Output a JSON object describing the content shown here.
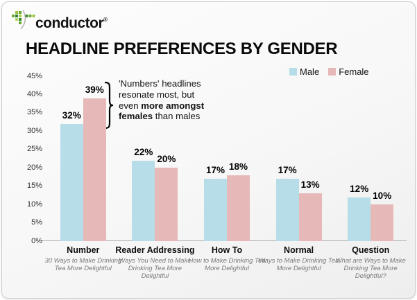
{
  "logo": {
    "text": "conductor",
    "registered": "®"
  },
  "title": "HEADLINE PREFERENCES BY GENDER",
  "legend": [
    {
      "label": "Male",
      "color": "#b7dee8"
    },
    {
      "label": "Female",
      "color": "#e6b9b8"
    }
  ],
  "annotation": {
    "lines": [
      [
        {
          "text": "'Numbers' headlines",
          "bold": false
        }
      ],
      [
        {
          "text": "resonate most, but",
          "bold": false
        }
      ],
      [
        {
          "text": "even ",
          "bold": false
        },
        {
          "text": "more amongst",
          "bold": true
        }
      ],
      [
        {
          "text": "females",
          "bold": true
        },
        {
          "text": " than males",
          "bold": false
        }
      ]
    ]
  },
  "chart_data": {
    "type": "bar",
    "categories": [
      "Number",
      "Reader Addressing",
      "How To",
      "Normal",
      "Question"
    ],
    "category_subtitles": [
      "30 Ways to Make Drinking Tea More Delightful",
      "Ways You Need to Make Drinking Tea More Delightful",
      "How to Make Drinking Tea More Delightful",
      "Ways to Make Drinking Tea More Delightful",
      "What are Ways to Make Drinking Tea More Delightful?"
    ],
    "series": [
      {
        "name": "Male",
        "color": "#b7dee8",
        "values": [
          32,
          22,
          17,
          17,
          12
        ]
      },
      {
        "name": "Female",
        "color": "#e6b9b8",
        "values": [
          39,
          20,
          18,
          13,
          10
        ]
      }
    ],
    "value_suffix": "%",
    "ylim": [
      0,
      45
    ],
    "ytick_step": 5,
    "ytick_labels": [
      "0%",
      "5%",
      "10%",
      "15%",
      "20%",
      "25%",
      "30%",
      "35%",
      "40%",
      "45%"
    ],
    "grid": "off",
    "legend_position": "top-right"
  }
}
